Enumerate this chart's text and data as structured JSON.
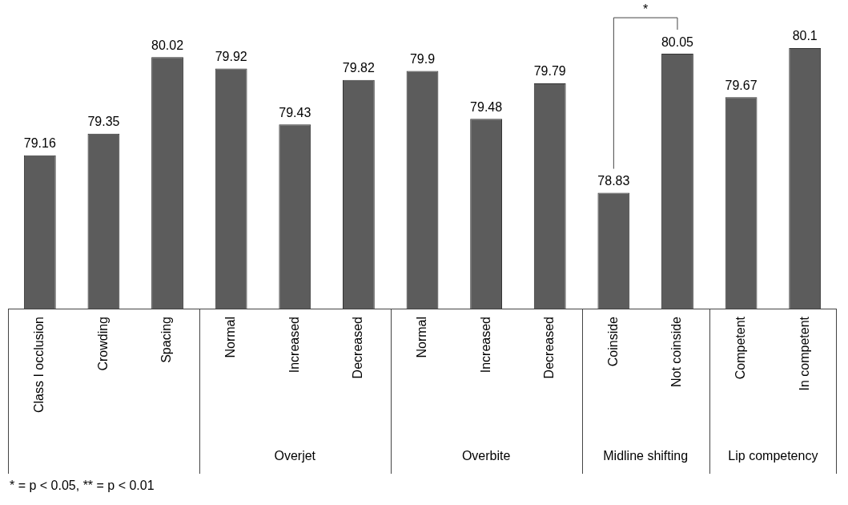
{
  "chart_data": {
    "type": "bar",
    "categories": [
      "Class I occlusion",
      "Crowding",
      "Spacing",
      "Normal",
      "Increased",
      "Decreased",
      "Normal",
      "Increased",
      "Decreased",
      "Coinside",
      "Not coinside",
      "Competent",
      "In competent"
    ],
    "values": [
      79.16,
      79.35,
      80.02,
      79.92,
      79.43,
      79.82,
      79.9,
      79.48,
      79.79,
      78.83,
      80.05,
      79.67,
      80.1
    ],
    "color": "#5c5c5c",
    "tick_labels": "x",
    "data_labels": true,
    "grid": false,
    "legend": false,
    "annotations": [
      "*",
      "Overjet",
      "Overbite",
      "Midline shifting",
      "Lip competency",
      "* = p < 0.05, ** = p < 0.01"
    ]
  }
}
